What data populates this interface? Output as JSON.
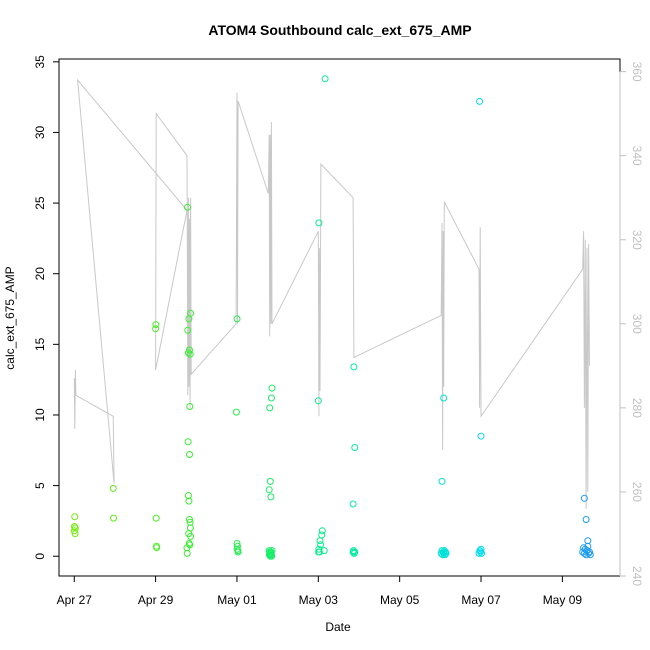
{
  "chart_data": {
    "type": "scatter",
    "title": "ATOM4 Southbound calc_ext_675_AMP",
    "xlabel": "Date",
    "ylabel": "calc_ext_675_AMP",
    "xlim": [
      "2024-04-26T15:00",
      "2024-05-10T10:00"
    ],
    "ylim": [
      -1.4,
      35.2
    ],
    "y2lim": [
      240,
      363
    ],
    "x_ticks": [
      "Apr 27",
      "Apr 29",
      "May 01",
      "May 03",
      "May 05",
      "May 07",
      "May 09"
    ],
    "x_tick_dates": [
      "2024-04-27",
      "2024-04-29",
      "2024-05-01",
      "2024-05-03",
      "2024-05-05",
      "2024-05-07",
      "2024-05-09"
    ],
    "y_ticks": [
      0,
      5,
      10,
      15,
      20,
      25,
      30,
      35
    ],
    "y2_ticks": [
      240,
      260,
      280,
      300,
      320,
      340,
      360
    ],
    "grid": false,
    "legend": "none",
    "colors": {
      "line": "#c8c8c8",
      "right_axis": "#c0c0c0",
      "point_scale": [
        "#77ee00",
        "#33ee33",
        "#00ee99",
        "#00ddee",
        "#2288ee"
      ]
    },
    "series": [
      {
        "type": "points",
        "points": [
          {
            "x": "2024-04-27T00:00",
            "y": 1.8
          },
          {
            "x": "2024-04-27T00:10",
            "y": 2.1
          },
          {
            "x": "2024-04-27T00:20",
            "y": 2.8
          },
          {
            "x": "2024-04-27T00:30",
            "y": 1.6
          },
          {
            "x": "2024-04-27T00:40",
            "y": 2.0
          },
          {
            "x": "2024-04-27T23:00",
            "y": 4.8
          },
          {
            "x": "2024-04-27T23:10",
            "y": 2.7
          },
          {
            "x": "2024-04-29T00:00",
            "y": 16.1
          },
          {
            "x": "2024-04-29T00:10",
            "y": 16.4
          },
          {
            "x": "2024-04-29T00:20",
            "y": 2.7
          },
          {
            "x": "2024-04-29T00:30",
            "y": 0.7
          },
          {
            "x": "2024-04-29T00:40",
            "y": 0.6
          },
          {
            "x": "2024-04-29T18:30",
            "y": 0.6
          },
          {
            "x": "2024-04-29T18:40",
            "y": 0.2
          },
          {
            "x": "2024-04-29T18:50",
            "y": 24.7
          },
          {
            "x": "2024-04-29T19:00",
            "y": 16.0
          },
          {
            "x": "2024-04-29T19:20",
            "y": 14.4
          },
          {
            "x": "2024-04-29T19:40",
            "y": 16.8
          },
          {
            "x": "2024-04-29T20:00",
            "y": 14.6
          },
          {
            "x": "2024-04-29T20:20",
            "y": 14.3
          },
          {
            "x": "2024-04-29T20:40",
            "y": 17.2
          },
          {
            "x": "2024-04-29T19:10",
            "y": 8.1
          },
          {
            "x": "2024-04-29T20:00",
            "y": 7.2
          },
          {
            "x": "2024-04-29T20:10",
            "y": 10.6
          },
          {
            "x": "2024-04-29T19:20",
            "y": 4.3
          },
          {
            "x": "2024-04-29T19:40",
            "y": 3.9
          },
          {
            "x": "2024-04-29T20:00",
            "y": 2.6
          },
          {
            "x": "2024-04-29T20:20",
            "y": 2.4
          },
          {
            "x": "2024-04-29T20:30",
            "y": 2.0
          },
          {
            "x": "2024-04-29T19:30",
            "y": 1.6
          },
          {
            "x": "2024-04-29T20:40",
            "y": 1.4
          },
          {
            "x": "2024-04-29T19:50",
            "y": 0.9
          },
          {
            "x": "2024-04-29T20:10",
            "y": 0.8
          },
          {
            "x": "2024-04-30T23:40",
            "y": 10.2
          },
          {
            "x": "2024-05-01T00:00",
            "y": 16.8
          },
          {
            "x": "2024-05-01T00:00",
            "y": 0.9
          },
          {
            "x": "2024-05-01T00:20",
            "y": 0.7
          },
          {
            "x": "2024-05-01T00:30",
            "y": 0.4
          },
          {
            "x": "2024-05-01T00:40",
            "y": 0.3
          },
          {
            "x": "2024-05-01T00:10",
            "y": 0.5
          },
          {
            "x": "2024-05-01T19:00",
            "y": 4.7
          },
          {
            "x": "2024-05-01T19:20",
            "y": 10.5
          },
          {
            "x": "2024-05-01T19:40",
            "y": 5.3
          },
          {
            "x": "2024-05-01T20:00",
            "y": 4.2
          },
          {
            "x": "2024-05-01T20:20",
            "y": 11.2
          },
          {
            "x": "2024-05-01T20:40",
            "y": 11.9
          },
          {
            "x": "2024-05-01T19:00",
            "y": 0.4
          },
          {
            "x": "2024-05-01T19:10",
            "y": 0.1
          },
          {
            "x": "2024-05-01T19:20",
            "y": 0.3
          },
          {
            "x": "2024-05-01T19:30",
            "y": 0.2
          },
          {
            "x": "2024-05-01T19:40",
            "y": 0.0
          },
          {
            "x": "2024-05-01T19:50",
            "y": 0.1
          },
          {
            "x": "2024-05-01T20:00",
            "y": 0.3
          },
          {
            "x": "2024-05-01T20:10",
            "y": 0.2
          },
          {
            "x": "2024-05-01T20:20",
            "y": 0.1
          },
          {
            "x": "2024-05-01T20:30",
            "y": 0.0
          },
          {
            "x": "2024-05-01T20:40",
            "y": 0.4
          },
          {
            "x": "2024-05-03T00:00",
            "y": 11.0
          },
          {
            "x": "2024-05-03T00:20",
            "y": 23.6
          },
          {
            "x": "2024-05-03T04:00",
            "y": 33.8
          },
          {
            "x": "2024-05-03T00:10",
            "y": 0.3
          },
          {
            "x": "2024-05-03T00:20",
            "y": 0.5
          },
          {
            "x": "2024-05-03T00:40",
            "y": 0.3
          },
          {
            "x": "2024-05-03T01:00",
            "y": 1.1
          },
          {
            "x": "2024-05-03T01:20",
            "y": 0.8
          },
          {
            "x": "2024-05-03T02:00",
            "y": 1.5
          },
          {
            "x": "2024-05-03T02:20",
            "y": 1.8
          },
          {
            "x": "2024-05-03T03:30",
            "y": 0.4
          },
          {
            "x": "2024-05-03T20:30",
            "y": 3.7
          },
          {
            "x": "2024-05-03T21:00",
            "y": 13.4
          },
          {
            "x": "2024-05-03T21:30",
            "y": 7.7
          },
          {
            "x": "2024-05-03T20:30",
            "y": 0.3
          },
          {
            "x": "2024-05-03T20:50",
            "y": 0.4
          },
          {
            "x": "2024-05-03T21:10",
            "y": 0.2
          },
          {
            "x": "2024-05-03T21:30",
            "y": 0.3
          },
          {
            "x": "2024-05-06T01:00",
            "y": 5.3
          },
          {
            "x": "2024-05-06T02:00",
            "y": 11.2
          },
          {
            "x": "2024-05-06T00:30",
            "y": 0.2
          },
          {
            "x": "2024-05-06T01:00",
            "y": 0.4
          },
          {
            "x": "2024-05-06T01:20",
            "y": 0.1
          },
          {
            "x": "2024-05-06T01:40",
            "y": 0.3
          },
          {
            "x": "2024-05-06T02:00",
            "y": 0.2
          },
          {
            "x": "2024-05-06T02:20",
            "y": 0.4
          },
          {
            "x": "2024-05-06T02:40",
            "y": 0.1
          },
          {
            "x": "2024-05-06T03:00",
            "y": 0.3
          },
          {
            "x": "2024-05-06T03:20",
            "y": 0.2
          },
          {
            "x": "2024-05-06T23:10",
            "y": 32.2
          },
          {
            "x": "2024-05-07T00:00",
            "y": 8.5
          },
          {
            "x": "2024-05-06T22:50",
            "y": 0.2
          },
          {
            "x": "2024-05-06T23:20",
            "y": 0.4
          },
          {
            "x": "2024-05-06T23:40",
            "y": 0.3
          },
          {
            "x": "2024-05-07T00:00",
            "y": 0.5
          },
          {
            "x": "2024-05-07T00:20",
            "y": 0.2
          },
          {
            "x": "2024-05-09T13:00",
            "y": 4.1
          },
          {
            "x": "2024-05-09T14:00",
            "y": 2.6
          },
          {
            "x": "2024-05-09T15:00",
            "y": 1.1
          },
          {
            "x": "2024-05-09T12:00",
            "y": 0.3
          },
          {
            "x": "2024-05-09T12:30",
            "y": 0.6
          },
          {
            "x": "2024-05-09T13:00",
            "y": 0.2
          },
          {
            "x": "2024-05-09T13:30",
            "y": 0.5
          },
          {
            "x": "2024-05-09T14:00",
            "y": 0.1
          },
          {
            "x": "2024-05-09T14:30",
            "y": 0.4
          },
          {
            "x": "2024-05-09T15:00",
            "y": 0.7
          },
          {
            "x": "2024-05-09T15:30",
            "y": 0.2
          },
          {
            "x": "2024-05-09T16:00",
            "y": 0.3
          },
          {
            "x": "2024-05-09T16:30",
            "y": 0.1
          }
        ]
      },
      {
        "type": "line",
        "axis": "right",
        "points": [
          {
            "x": "2024-04-27T00:00",
            "y": 287
          },
          {
            "x": "2024-04-27T00:20",
            "y": 275
          },
          {
            "x": "2024-04-27T00:40",
            "y": 289
          },
          {
            "x": "2024-04-27T01:00",
            "y": 283
          },
          {
            "x": "2024-04-27T23:00",
            "y": 278
          },
          {
            "x": "2024-04-27T23:30",
            "y": 262
          },
          {
            "x": "2024-04-27T02:00",
            "y": 358
          },
          {
            "x": "2024-04-29T18:30",
            "y": 327
          },
          {
            "x": "2024-04-29T00:00",
            "y": 289
          },
          {
            "x": "2024-04-29T00:20",
            "y": 350
          },
          {
            "x": "2024-04-29T18:30",
            "y": 340
          },
          {
            "x": "2024-04-29T19:00",
            "y": 283
          },
          {
            "x": "2024-04-29T19:20",
            "y": 330
          },
          {
            "x": "2024-04-29T19:40",
            "y": 285
          },
          {
            "x": "2024-04-29T20:00",
            "y": 325
          },
          {
            "x": "2024-04-29T20:20",
            "y": 280
          },
          {
            "x": "2024-04-29T20:40",
            "y": 330
          },
          {
            "x": "2024-04-29T21:00",
            "y": 288
          },
          {
            "x": "2024-04-30T23:30",
            "y": 300
          },
          {
            "x": "2024-05-01T00:00",
            "y": 355
          },
          {
            "x": "2024-05-01T00:20",
            "y": 300
          },
          {
            "x": "2024-05-01T00:40",
            "y": 353
          },
          {
            "x": "2024-05-01T18:30",
            "y": 331
          },
          {
            "x": "2024-05-01T19:00",
            "y": 345
          },
          {
            "x": "2024-05-01T19:20",
            "y": 297
          },
          {
            "x": "2024-05-01T19:40",
            "y": 345
          },
          {
            "x": "2024-05-01T20:00",
            "y": 300
          },
          {
            "x": "2024-05-01T20:20",
            "y": 348
          },
          {
            "x": "2024-05-01T20:40",
            "y": 300
          },
          {
            "x": "2024-05-03T00:00",
            "y": 322
          },
          {
            "x": "2024-05-03T00:20",
            "y": 278
          },
          {
            "x": "2024-05-03T00:40",
            "y": 318
          },
          {
            "x": "2024-05-03T01:00",
            "y": 284
          },
          {
            "x": "2024-05-03T01:30",
            "y": 338
          },
          {
            "x": "2024-05-03T20:30",
            "y": 330
          },
          {
            "x": "2024-05-03T21:00",
            "y": 292
          },
          {
            "x": "2024-05-06T00:30",
            "y": 302
          },
          {
            "x": "2024-05-06T01:00",
            "y": 324
          },
          {
            "x": "2024-05-06T01:20",
            "y": 270
          },
          {
            "x": "2024-05-06T01:40",
            "y": 322
          },
          {
            "x": "2024-05-06T02:00",
            "y": 285
          },
          {
            "x": "2024-05-06T02:20",
            "y": 329
          },
          {
            "x": "2024-05-06T22:50",
            "y": 313
          },
          {
            "x": "2024-05-06T23:10",
            "y": 280
          },
          {
            "x": "2024-05-06T23:30",
            "y": 323
          },
          {
            "x": "2024-05-07T00:00",
            "y": 278
          },
          {
            "x": "2024-05-09T12:00",
            "y": 313
          },
          {
            "x": "2024-05-09T12:30",
            "y": 322
          },
          {
            "x": "2024-05-09T13:00",
            "y": 280
          },
          {
            "x": "2024-05-09T13:30",
            "y": 320
          },
          {
            "x": "2024-05-09T14:00",
            "y": 256
          },
          {
            "x": "2024-05-09T14:30",
            "y": 318
          },
          {
            "x": "2024-05-09T15:00",
            "y": 260
          },
          {
            "x": "2024-05-09T15:30",
            "y": 319
          },
          {
            "x": "2024-05-09T16:00",
            "y": 290
          }
        ]
      }
    ]
  }
}
